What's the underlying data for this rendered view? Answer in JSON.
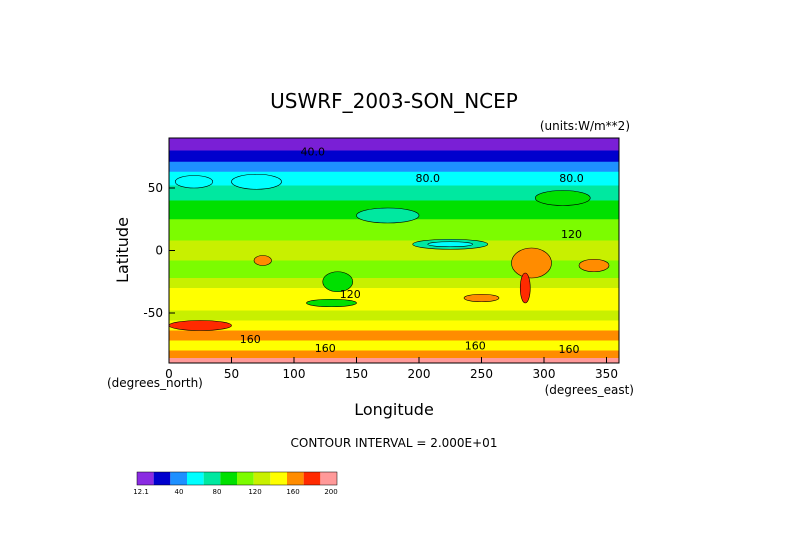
{
  "chart_data": {
    "type": "heatmap",
    "title": "USWRF_2003-SON_NCEP",
    "units_label": "(units:W/m**2)",
    "xlabel": "Longitude",
    "ylabel": "Latitude",
    "x_unit_label": "(degrees_east)",
    "y_unit_label": "(degrees_north)",
    "xlim": [
      0,
      360
    ],
    "ylim": [
      -90,
      90
    ],
    "x_ticks": [
      0,
      50,
      100,
      150,
      200,
      250,
      300,
      350
    ],
    "y_ticks": [
      -50,
      0,
      50
    ],
    "contour_interval_text": "CONTOUR INTERVAL = 2.000E+01",
    "contour_labels": [
      {
        "text": "40.0",
        "x": 115,
        "y": 76
      },
      {
        "text": "80.0",
        "x": 207,
        "y": 55
      },
      {
        "text": "80.0",
        "x": 322,
        "y": 55
      },
      {
        "text": "120",
        "x": 322,
        "y": 10
      },
      {
        "text": "120",
        "x": 145,
        "y": -38
      },
      {
        "text": "160",
        "x": 65,
        "y": -74
      },
      {
        "text": "160",
        "x": 125,
        "y": -81
      },
      {
        "text": "160",
        "x": 245,
        "y": -79
      },
      {
        "text": "160",
        "x": 320,
        "y": -82
      }
    ],
    "colorbar": {
      "colors": [
        "#8a2be2",
        "#0000cd",
        "#1e90ff",
        "#00ffff",
        "#00e8a0",
        "#00e000",
        "#7cfc00",
        "#c8f000",
        "#ffff00",
        "#ff8c00",
        "#ff2a00",
        "#ff9999"
      ],
      "tick_labels": [
        "12.1",
        "40",
        "80",
        "120",
        "160",
        "200"
      ]
    }
  }
}
